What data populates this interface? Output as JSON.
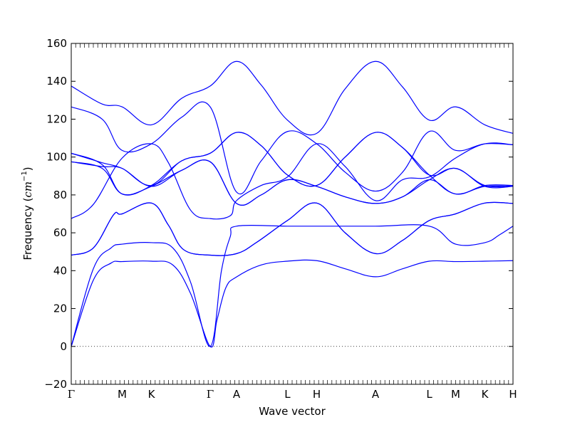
{
  "chart_data": {
    "type": "line",
    "xlabel": "Wave vector",
    "ylabel": "Frequency (cm⁻¹)",
    "ylabel_parts": {
      "text": "Frequency (",
      "math": "cm",
      "exp": "−1",
      "close": ")"
    },
    "ylim": [
      -20,
      160
    ],
    "yticks": [
      -20,
      0,
      20,
      40,
      60,
      80,
      100,
      120,
      140,
      160
    ],
    "xlim": [
      0,
      1
    ],
    "grid": false,
    "zero_line": {
      "y": 0,
      "style": "dotted"
    },
    "line_color": "#0000ff",
    "high_symmetry_points": [
      {
        "label": "Γ",
        "x": 0.0
      },
      {
        "label": "M",
        "x": 0.1153
      },
      {
        "label": "K",
        "x": 0.1815
      },
      {
        "label": "Γ",
        "x": 0.3145
      },
      {
        "label": "A",
        "x": 0.3742
      },
      {
        "label": "L",
        "x": 0.4895
      },
      {
        "label": "H",
        "x": 0.5556
      },
      {
        "label": "A",
        "x": 0.6887
      },
      {
        "label": "L",
        "x": 0.8105
      },
      {
        "label": "M",
        "x": 0.8702
      },
      {
        "label": "K",
        "x": 0.9363
      },
      {
        "label": "H",
        "x": 1.0
      }
    ],
    "series": [
      {
        "values": [
          [
            0.0,
            0
          ],
          [
            0.05,
            35
          ],
          [
            0.09,
            44
          ],
          [
            0.1153,
            44.8
          ],
          [
            0.1815,
            45
          ],
          [
            0.23,
            43
          ],
          [
            0.27,
            28
          ],
          [
            0.3145,
            0
          ],
          [
            0.33,
            14
          ],
          [
            0.35,
            31
          ],
          [
            0.3742,
            36.7
          ],
          [
            0.43,
            43
          ],
          [
            0.4895,
            45
          ],
          [
            0.5556,
            45.3
          ],
          [
            0.62,
            41
          ],
          [
            0.6887,
            36.8
          ],
          [
            0.75,
            41
          ],
          [
            0.8105,
            45
          ],
          [
            0.8702,
            44.8
          ],
          [
            0.9363,
            45
          ],
          [
            1.0,
            45.3
          ]
        ]
      },
      {
        "values": [
          [
            0.0,
            0
          ],
          [
            0.05,
            41
          ],
          [
            0.09,
            52
          ],
          [
            0.1153,
            54
          ],
          [
            0.1815,
            54.8
          ],
          [
            0.23,
            52
          ],
          [
            0.27,
            34
          ],
          [
            0.3145,
            0
          ],
          [
            0.34,
            40
          ],
          [
            0.36,
            58
          ],
          [
            0.3742,
            63.5
          ],
          [
            0.4895,
            63.5
          ],
          [
            0.5556,
            63.5
          ],
          [
            0.6887,
            63.5
          ],
          [
            0.8105,
            63.5
          ],
          [
            0.8702,
            54
          ],
          [
            0.9363,
            54.8
          ],
          [
            0.97,
            59
          ],
          [
            1.0,
            63.5
          ]
        ]
      },
      {
        "values": [
          [
            0.0,
            48.2
          ],
          [
            0.05,
            52
          ],
          [
            0.0957,
            69.5
          ],
          [
            0.1153,
            70
          ],
          [
            0.1815,
            75.7
          ],
          [
            0.22,
            64
          ],
          [
            0.255,
            51
          ],
          [
            0.3145,
            48.2
          ],
          [
            0.3742,
            49
          ],
          [
            0.42,
            55
          ],
          [
            0.4895,
            66.5
          ],
          [
            0.5556,
            75.7
          ],
          [
            0.62,
            60
          ],
          [
            0.6887,
            49
          ],
          [
            0.75,
            56
          ],
          [
            0.8105,
            66.5
          ],
          [
            0.8702,
            70
          ],
          [
            0.9363,
            75.7
          ],
          [
            1.0,
            75.5
          ]
        ]
      },
      {
        "values": [
          [
            0.0,
            48.2
          ],
          [
            0.05,
            52
          ],
          [
            0.0957,
            69.5
          ],
          [
            0.1153,
            70
          ],
          [
            0.1815,
            75.7
          ],
          [
            0.22,
            64
          ],
          [
            0.255,
            51
          ],
          [
            0.3145,
            48.2
          ],
          [
            0.3742,
            49
          ],
          [
            0.42,
            55
          ],
          [
            0.4895,
            66.5
          ],
          [
            0.5556,
            75.7
          ],
          [
            0.62,
            60
          ],
          [
            0.6887,
            49
          ],
          [
            0.75,
            56
          ],
          [
            0.8105,
            66.5
          ],
          [
            0.8702,
            70
          ],
          [
            0.9363,
            75.7
          ],
          [
            1.0,
            75.5
          ]
        ]
      },
      {
        "values": [
          [
            0.0,
            67.5
          ],
          [
            0.05,
            75
          ],
          [
            0.1153,
            99.5
          ],
          [
            0.1815,
            107
          ],
          [
            0.22,
            97
          ],
          [
            0.27,
            72
          ],
          [
            0.3145,
            67.5
          ],
          [
            0.36,
            69
          ],
          [
            0.3742,
            77
          ],
          [
            0.43,
            85
          ],
          [
            0.4895,
            89.5
          ],
          [
            0.5556,
            107
          ],
          [
            0.62,
            95
          ],
          [
            0.6887,
            77
          ],
          [
            0.75,
            88
          ],
          [
            0.8105,
            89.5
          ],
          [
            0.8702,
            99.5
          ],
          [
            0.9363,
            107
          ],
          [
            1.0,
            106.5
          ]
        ]
      },
      {
        "values": [
          [
            0.0,
            97.5
          ],
          [
            0.07,
            95
          ],
          [
            0.1153,
            94
          ],
          [
            0.1815,
            84.5
          ],
          [
            0.25,
            93
          ],
          [
            0.3145,
            97.5
          ],
          [
            0.3742,
            75.5
          ],
          [
            0.43,
            80
          ],
          [
            0.4895,
            88
          ],
          [
            0.5556,
            84.5
          ],
          [
            0.62,
            79
          ],
          [
            0.6887,
            75.5
          ],
          [
            0.75,
            79
          ],
          [
            0.8105,
            88
          ],
          [
            0.8702,
            94
          ],
          [
            0.9363,
            84.5
          ],
          [
            1.0,
            84.5
          ]
        ]
      },
      {
        "values": [
          [
            0.0,
            97.5
          ],
          [
            0.07,
            94
          ],
          [
            0.1153,
            80.5
          ],
          [
            0.1815,
            84.5
          ],
          [
            0.25,
            93
          ],
          [
            0.3145,
            97.5
          ],
          [
            0.3742,
            75.5
          ],
          [
            0.43,
            80
          ],
          [
            0.4895,
            88
          ],
          [
            0.5556,
            84.5
          ],
          [
            0.62,
            79
          ],
          [
            0.6887,
            75.5
          ],
          [
            0.75,
            79
          ],
          [
            0.8105,
            88
          ],
          [
            0.8702,
            80.5
          ],
          [
            0.9363,
            84.5
          ],
          [
            1.0,
            84.5
          ]
        ]
      },
      {
        "values": [
          [
            0.0,
            102
          ],
          [
            0.07,
            96
          ],
          [
            0.1153,
            80.5
          ],
          [
            0.1815,
            85
          ],
          [
            0.25,
            98
          ],
          [
            0.3145,
            102
          ],
          [
            0.3742,
            113
          ],
          [
            0.43,
            106
          ],
          [
            0.4895,
            90.5
          ],
          [
            0.5556,
            85
          ],
          [
            0.62,
            100
          ],
          [
            0.6887,
            113
          ],
          [
            0.75,
            105
          ],
          [
            0.8105,
            90.5
          ],
          [
            0.8702,
            80.5
          ],
          [
            0.9363,
            85
          ],
          [
            1.0,
            85
          ]
        ]
      },
      {
        "values": [
          [
            0.0,
            102
          ],
          [
            0.07,
            97
          ],
          [
            0.1153,
            94
          ],
          [
            0.1815,
            85
          ],
          [
            0.25,
            98
          ],
          [
            0.3145,
            102
          ],
          [
            0.3742,
            113
          ],
          [
            0.43,
            106
          ],
          [
            0.4895,
            90.5
          ],
          [
            0.5556,
            85
          ],
          [
            0.62,
            100
          ],
          [
            0.6887,
            113
          ],
          [
            0.75,
            105
          ],
          [
            0.8105,
            90.5
          ],
          [
            0.8702,
            94
          ],
          [
            0.9363,
            85
          ],
          [
            1.0,
            85
          ]
        ]
      },
      {
        "values": [
          [
            0.0,
            126.5
          ],
          [
            0.07,
            120
          ],
          [
            0.1153,
            103.5
          ],
          [
            0.1815,
            107
          ],
          [
            0.25,
            121
          ],
          [
            0.3145,
            126.5
          ],
          [
            0.3742,
            81.5
          ],
          [
            0.43,
            98
          ],
          [
            0.4895,
            113.5
          ],
          [
            0.5556,
            107
          ],
          [
            0.62,
            92
          ],
          [
            0.6887,
            82
          ],
          [
            0.75,
            92
          ],
          [
            0.8105,
            113.5
          ],
          [
            0.8702,
            103.5
          ],
          [
            0.9363,
            107
          ],
          [
            1.0,
            106.5
          ]
        ]
      },
      {
        "values": [
          [
            0.0,
            137.5
          ],
          [
            0.07,
            128
          ],
          [
            0.1153,
            126.5
          ],
          [
            0.1815,
            117
          ],
          [
            0.25,
            131
          ],
          [
            0.3145,
            137.5
          ],
          [
            0.3742,
            150.5
          ],
          [
            0.43,
            138
          ],
          [
            0.4895,
            119.5
          ],
          [
            0.5556,
            112.5
          ],
          [
            0.62,
            136
          ],
          [
            0.6887,
            150.5
          ],
          [
            0.75,
            137
          ],
          [
            0.8105,
            119.5
          ],
          [
            0.8702,
            126.5
          ],
          [
            0.9363,
            117
          ],
          [
            1.0,
            112.5
          ]
        ]
      }
    ]
  }
}
